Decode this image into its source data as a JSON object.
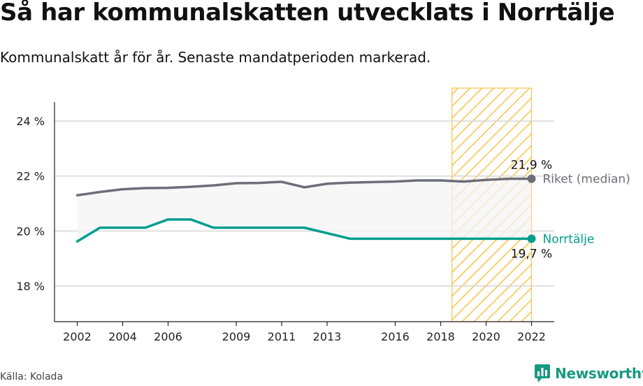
{
  "title": "Så har kommunalskatten utvecklats i Norrtälje",
  "subtitle": "Kommunalskatt år för år. Senaste mandatperioden markerad.",
  "source": "Källa: Kolada",
  "brand": {
    "name": "Newsworthy",
    "icon": "newsworthy-logo-icon",
    "color": "#17997f"
  },
  "chart_data": {
    "type": "line",
    "title": "Så har kommunalskatten utvecklats i Norrtälje",
    "subtitle": "Kommunalskatt år för år. Senaste mandatperioden markerad.",
    "xlabel": "",
    "ylabel": "",
    "xlim": [
      2001,
      2023
    ],
    "ylim": [
      16.7,
      25.2
    ],
    "x_ticks": [
      2002,
      2004,
      2006,
      2009,
      2011,
      2013,
      2016,
      2018,
      2020,
      2022
    ],
    "y_ticks": [
      18,
      20,
      22,
      24
    ],
    "y_tick_labels": [
      "18 %",
      "20 %",
      "22 %",
      "24 %"
    ],
    "grid": true,
    "highlight_period": {
      "from": 2018.5,
      "to": 2022,
      "color": "#f8c44a",
      "pattern": "diagonal-hatch"
    },
    "series": [
      {
        "name": "Riket (median)",
        "color": "#6e6e78",
        "x": [
          2002,
          2003,
          2004,
          2005,
          2006,
          2007,
          2008,
          2009,
          2010,
          2011,
          2012,
          2013,
          2014,
          2015,
          2016,
          2017,
          2018,
          2019,
          2020,
          2021,
          2022
        ],
        "values": [
          21.3,
          21.42,
          21.52,
          21.56,
          21.57,
          21.61,
          21.66,
          21.74,
          21.75,
          21.79,
          21.59,
          21.72,
          21.76,
          21.78,
          21.8,
          21.84,
          21.84,
          21.8,
          21.86,
          21.9,
          21.9
        ],
        "end_label": "21,9 %"
      },
      {
        "name": "Norrtälje",
        "color": "#009e8f",
        "x": [
          2002,
          2003,
          2004,
          2005,
          2006,
          2007,
          2008,
          2009,
          2010,
          2011,
          2012,
          2013,
          2014,
          2015,
          2016,
          2017,
          2018,
          2019,
          2020,
          2021,
          2022
        ],
        "values": [
          19.62,
          20.12,
          20.12,
          20.12,
          20.42,
          20.42,
          20.12,
          20.12,
          20.12,
          20.12,
          20.12,
          19.92,
          19.72,
          19.72,
          19.72,
          19.72,
          19.72,
          19.72,
          19.72,
          19.72,
          19.72
        ],
        "end_label": "19,7 %"
      }
    ],
    "band_fill": "#f4f4f6"
  }
}
